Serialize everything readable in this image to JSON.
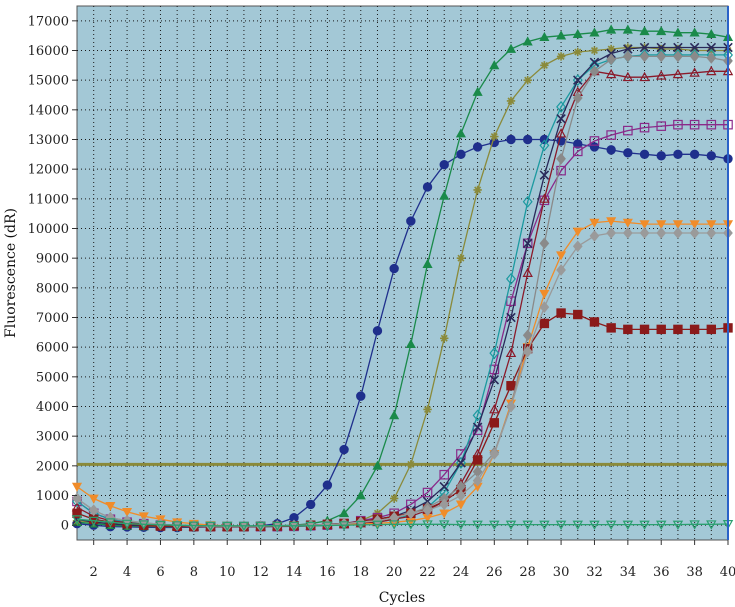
{
  "chart_data": {
    "type": "line",
    "xlabel": "Cycles",
    "ylabel": "Fluorescence (dR)",
    "xlim": [
      1,
      40
    ],
    "ylim": [
      -500,
      17500
    ],
    "x_ticks": [
      2,
      4,
      6,
      8,
      10,
      12,
      14,
      16,
      18,
      20,
      22,
      24,
      26,
      28,
      30,
      32,
      34,
      36,
      38,
      40
    ],
    "y_ticks": [
      0,
      1000,
      2000,
      3000,
      4000,
      5000,
      6000,
      7000,
      8000,
      9000,
      10000,
      11000,
      12000,
      13000,
      14000,
      15000,
      16000,
      17000
    ],
    "grid": "dotted",
    "plot_background": "#a3c8d6",
    "threshold": {
      "value": 2050,
      "color": "#8a8a3a"
    },
    "series": [
      {
        "color": "#1f2f8c",
        "marker": "circle",
        "values": [
          50,
          0,
          -50,
          -60,
          -70,
          -80,
          -80,
          -70,
          -60,
          -50,
          -40,
          -20,
          50,
          250,
          700,
          1350,
          2550,
          4350,
          6550,
          8650,
          10250,
          11400,
          12150,
          12500,
          12750,
          12900,
          13000,
          13000,
          13000,
          12950,
          12850,
          12750,
          12650,
          12550,
          12500,
          12450,
          12500,
          12500,
          12450,
          12350
        ]
      },
      {
        "color": "#1a8a4a",
        "marker": "triangle-up",
        "values": [
          100,
          50,
          0,
          -30,
          -40,
          -50,
          -50,
          -50,
          -50,
          -50,
          -40,
          -30,
          -20,
          0,
          50,
          150,
          400,
          1000,
          2000,
          3700,
          6100,
          8800,
          11100,
          13200,
          14600,
          15500,
          16050,
          16300,
          16450,
          16500,
          16550,
          16600,
          16700,
          16700,
          16650,
          16650,
          16600,
          16600,
          16550,
          16450
        ]
      },
      {
        "color": "#8a8a3a",
        "marker": "star",
        "values": [
          150,
          100,
          50,
          0,
          -30,
          -40,
          -50,
          -50,
          -50,
          -50,
          -50,
          -50,
          -40,
          -30,
          -20,
          0,
          50,
          150,
          400,
          900,
          2050,
          3900,
          6300,
          9000,
          11300,
          13100,
          14300,
          15000,
          15500,
          15800,
          15950,
          16000,
          16050,
          16100,
          16100,
          16050,
          16050,
          16000,
          16000,
          16000
        ]
      },
      {
        "color": "#8a2a8a",
        "marker": "square-open",
        "values": [
          800,
          400,
          200,
          100,
          50,
          0,
          -30,
          -40,
          -50,
          -50,
          -50,
          -50,
          -50,
          -40,
          -20,
          0,
          50,
          150,
          250,
          400,
          700,
          1100,
          1700,
          2400,
          3200,
          5250,
          7550,
          9500,
          10950,
          11950,
          12600,
          12950,
          13150,
          13300,
          13400,
          13450,
          13500,
          13500,
          13500,
          13500
        ]
      },
      {
        "color": "#1c9aa0",
        "marker": "diamond-open",
        "values": [
          800,
          400,
          200,
          100,
          50,
          0,
          -30,
          -40,
          -50,
          -50,
          -50,
          -50,
          -40,
          -30,
          -20,
          0,
          30,
          60,
          100,
          200,
          350,
          600,
          1100,
          2100,
          3700,
          5800,
          8300,
          10900,
          12800,
          14100,
          15000,
          15500,
          15700,
          15800,
          15850,
          15850,
          15850,
          15850,
          15850,
          15850
        ]
      },
      {
        "color": "#8b1a2a",
        "marker": "triangle-open",
        "values": [
          600,
          300,
          150,
          80,
          40,
          0,
          -30,
          -40,
          -50,
          -50,
          -50,
          -50,
          -40,
          -30,
          -20,
          0,
          30,
          60,
          100,
          200,
          300,
          500,
          800,
          1400,
          2400,
          3900,
          5800,
          8500,
          11000,
          13200,
          14600,
          15300,
          15200,
          15100,
          15100,
          15150,
          15200,
          15250,
          15300,
          15300
        ]
      },
      {
        "color": "#2a2a5a",
        "marker": "x",
        "values": [
          200,
          100,
          50,
          0,
          -20,
          -30,
          -40,
          -50,
          -50,
          -50,
          -50,
          -40,
          -30,
          -20,
          0,
          30,
          60,
          120,
          200,
          300,
          500,
          800,
          1300,
          2100,
          3300,
          4900,
          7000,
          9500,
          11800,
          13700,
          15000,
          15600,
          15900,
          16050,
          16100,
          16100,
          16100,
          16100,
          16100,
          16100
        ]
      },
      {
        "color": "#f08c2a",
        "marker": "triangle-down",
        "values": [
          1300,
          900,
          650,
          450,
          300,
          200,
          100,
          50,
          0,
          -20,
          -30,
          -30,
          -30,
          -20,
          -10,
          0,
          20,
          40,
          60,
          100,
          150,
          250,
          400,
          700,
          1300,
          2400,
          4100,
          6000,
          7800,
          9100,
          9900,
          10200,
          10250,
          10200,
          10150,
          10150,
          10150,
          10150,
          10150,
          10150
        ]
      },
      {
        "color": "#8b1a1a",
        "marker": "square",
        "values": [
          400,
          200,
          100,
          50,
          0,
          -30,
          -40,
          -50,
          -50,
          -50,
          -50,
          -40,
          -30,
          -20,
          0,
          30,
          60,
          120,
          200,
          300,
          400,
          550,
          800,
          1200,
          2200,
          3450,
          4700,
          5950,
          6800,
          7150,
          7100,
          6850,
          6650,
          6600,
          6600,
          6600,
          6600,
          6600,
          6600,
          6650
        ]
      },
      {
        "color": "#8a8a8a",
        "marker": "diamond",
        "values": [
          900,
          500,
          250,
          150,
          80,
          30,
          0,
          -20,
          -30,
          -30,
          -30,
          -30,
          -20,
          -10,
          0,
          20,
          50,
          100,
          150,
          250,
          400,
          600,
          900,
          1300,
          1800,
          2450,
          4000,
          6400,
          9500,
          12350,
          14400,
          15300,
          15700,
          15800,
          15800,
          15800,
          15800,
          15800,
          15750,
          15650
        ]
      },
      {
        "color": "#9a9a9a",
        "marker": "diamond",
        "values": [
          900,
          500,
          250,
          150,
          80,
          30,
          0,
          -20,
          -30,
          -30,
          -30,
          -30,
          -20,
          -10,
          0,
          20,
          50,
          100,
          150,
          250,
          400,
          500,
          700,
          1000,
          1500,
          2400,
          4000,
          5850,
          7350,
          8600,
          9400,
          9750,
          9850,
          9850,
          9850,
          9850,
          9850,
          9850,
          9850,
          9850
        ]
      },
      {
        "color": "#2aa070",
        "marker": "triangle-down-open",
        "values": [
          200,
          150,
          100,
          50,
          30,
          10,
          0,
          -10,
          -20,
          -20,
          -20,
          -20,
          -20,
          -20,
          -20,
          -10,
          0,
          10,
          20,
          30,
          30,
          30,
          30,
          20,
          20,
          20,
          20,
          20,
          20,
          20,
          20,
          20,
          20,
          20,
          20,
          20,
          20,
          30,
          30,
          40
        ]
      }
    ]
  }
}
